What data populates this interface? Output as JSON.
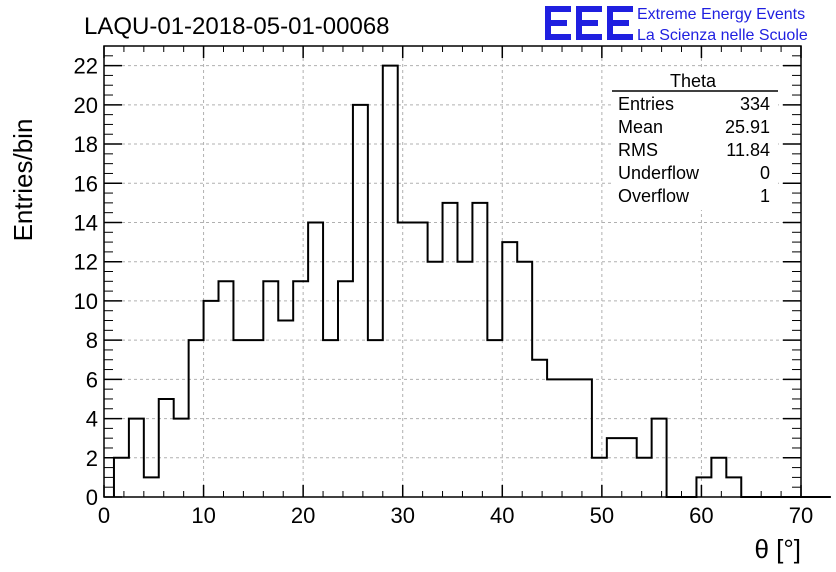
{
  "chart_data": {
    "type": "histogram",
    "title": "LAQU-01-2018-05-01-00068",
    "xlabel": "θ [°]",
    "ylabel": "Entries/bin",
    "xlim": [
      0,
      70
    ],
    "ylim": [
      0,
      23
    ],
    "grid": true,
    "bin_width": 1.5,
    "bin_start": 1,
    "values": [
      2,
      4,
      1,
      5,
      4,
      8,
      10,
      11,
      8,
      8,
      11,
      9,
      11,
      14,
      8,
      11,
      20,
      8,
      22,
      14,
      14,
      12,
      15,
      12,
      15,
      8,
      13,
      12,
      7,
      6,
      6,
      6,
      2,
      3,
      3,
      2,
      4,
      0,
      0,
      1,
      2,
      1,
      0,
      0,
      0,
      0,
      0,
      0
    ],
    "x_ticks": [
      "0",
      "10",
      "20",
      "30",
      "40",
      "50",
      "60",
      "70"
    ],
    "y_ticks": [
      "0",
      "2",
      "4",
      "6",
      "8",
      "10",
      "12",
      "14",
      "16",
      "18",
      "20",
      "22"
    ],
    "stats_box": {
      "title": "Theta",
      "rows": [
        {
          "label": "Entries",
          "value": "334"
        },
        {
          "label": "Mean",
          "value": "25.91"
        },
        {
          "label": "RMS",
          "value": "11.84"
        },
        {
          "label": "Underflow",
          "value": "0"
        },
        {
          "label": "Overflow",
          "value": "1"
        }
      ]
    }
  },
  "logo": {
    "mark": "EEE",
    "line1": "Extreme Energy Events",
    "line2": "La Scienza nelle Scuole",
    "color": "#1f1fe0"
  }
}
